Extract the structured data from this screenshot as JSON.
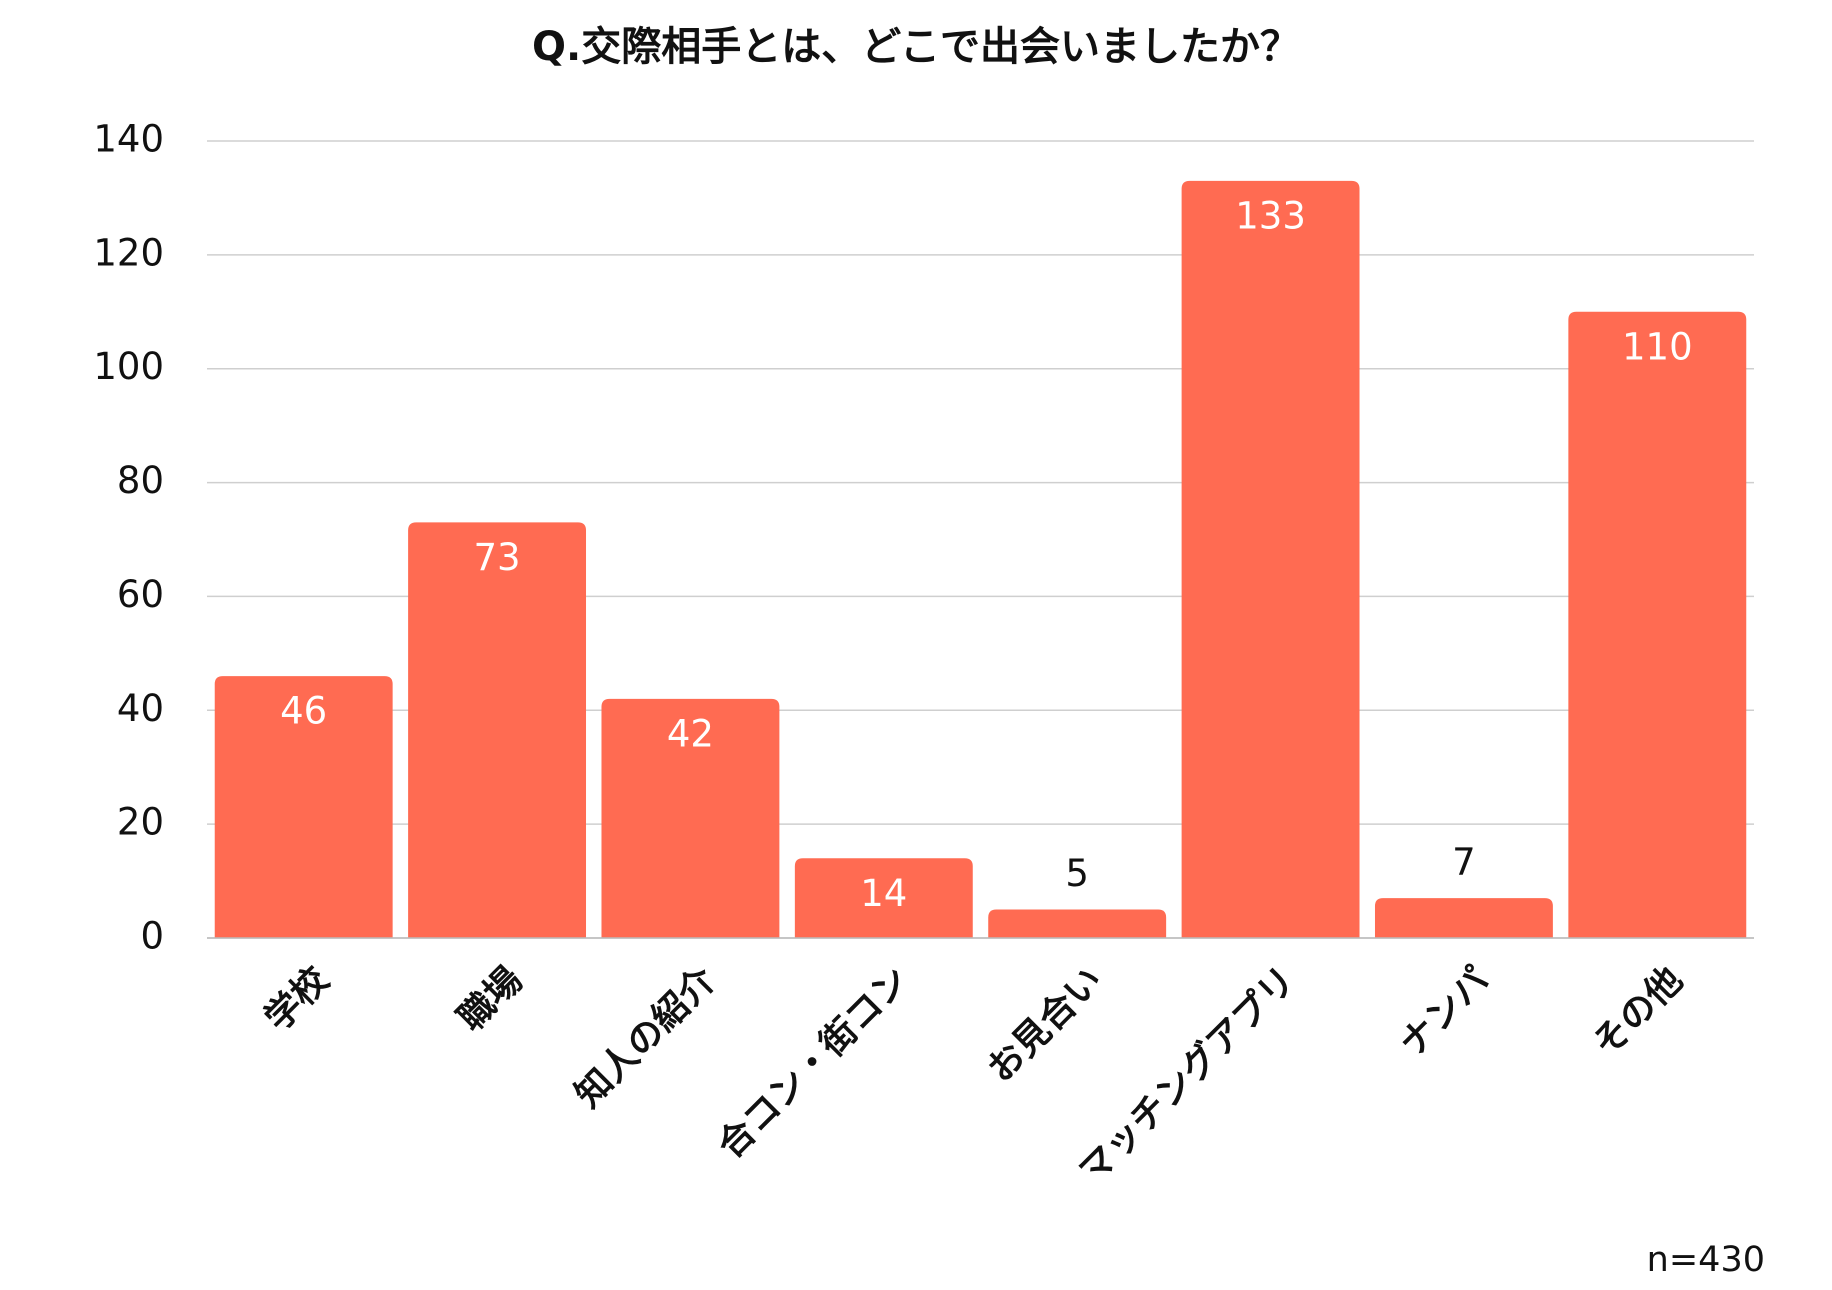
{
  "chart_data": {
    "type": "bar",
    "title": "Q.交際相手とは、どこで出会いましたか？",
    "categories": [
      "学校",
      "職場",
      "知人の紹介",
      "合コン・街コン",
      "お見合い",
      "マッチングアプリ",
      "ナンパ",
      "その他"
    ],
    "values": [
      46,
      73,
      42,
      14,
      5,
      133,
      7,
      110
    ],
    "color": "#ff6b52",
    "ylim": [
      0,
      140
    ],
    "yticks": [
      0,
      20,
      40,
      60,
      80,
      100,
      120,
      140
    ],
    "grid": true,
    "annotation": "n=430"
  }
}
